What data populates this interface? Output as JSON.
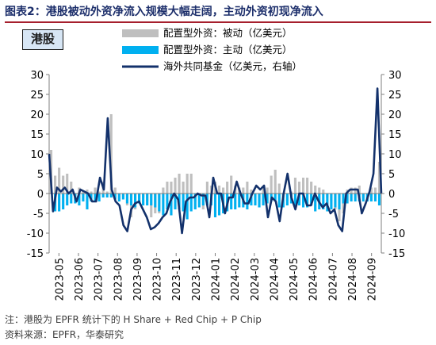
{
  "figure": {
    "title": "图表2：港股被动外资净流入规模大幅走阔，主动外资初现净流入",
    "panel_tag": "港股",
    "note": "注：港股为 EPFR 统计下的 H Share + Red Chip + P Chip",
    "source": "资料来源：EPFR，华泰研究"
  },
  "chart_data": {
    "type": "bar",
    "legend_position": "top",
    "grid": false,
    "y_left_ticks": [
      "30",
      "25",
      "20",
      "15",
      "10",
      "5",
      "0",
      "-5",
      "-10",
      "-15"
    ],
    "y_right_ticks": [
      "30",
      "25",
      "20",
      "15",
      "10",
      "5",
      "0",
      "-5",
      "-10",
      "-15"
    ],
    "ylim": [
      -15,
      30
    ],
    "y2lim": [
      -15,
      30
    ],
    "x_tick_labels": [
      "2023-05",
      "2023-06",
      "2023-07",
      "2023-08",
      "2023-09",
      "2023-10",
      "2023-11",
      "2023-12",
      "2024-01",
      "2024-02",
      "2024-03",
      "2024-04",
      "2024-05",
      "2024-06",
      "2024-07",
      "2024-08",
      "2024-09"
    ],
    "series": [
      {
        "name": "配置型外资：被动（亿美元）",
        "kind": "bar",
        "color": "#bfbfbf",
        "values": [
          11,
          4.5,
          6.5,
          4.5,
          5,
          3,
          -1.5,
          1.5,
          0.5,
          1,
          0.5,
          1.5,
          0.5,
          3,
          0.5,
          20,
          1.5,
          -1.5,
          -1,
          -3,
          -6,
          -4,
          -2.5,
          -1,
          -2,
          -6,
          -5,
          -5,
          1.5,
          3,
          3,
          4,
          5,
          3,
          5,
          5,
          -2,
          -1,
          -4,
          3,
          2,
          3,
          2,
          1.5,
          3,
          4.5,
          2,
          1.5,
          1.5,
          3,
          1,
          -1,
          -2,
          1.5,
          1.5,
          4.5,
          6,
          2.5,
          -1,
          -2,
          0.5,
          4,
          3,
          4,
          4,
          3,
          2,
          1.5,
          1,
          -1,
          -2,
          -4,
          -7,
          -5,
          1,
          1.5,
          1.5,
          2,
          -1,
          -2,
          1.5,
          1.5,
          8
        ]
      },
      {
        "name": "配置型外资：主动（亿美元）",
        "kind": "bar",
        "color": "#00b0f0",
        "values": [
          0,
          -4.5,
          -4.5,
          -4,
          -3,
          -2.5,
          -2.5,
          -3,
          -2,
          -4,
          -2,
          -2,
          -2,
          -1,
          -1,
          -1,
          -1.5,
          -2,
          -1.5,
          -2.5,
          -3,
          -3.5,
          -2.5,
          -3,
          -3,
          -3,
          -3.5,
          -4.5,
          -5.5,
          -4,
          -5.5,
          -4,
          -4,
          -4.5,
          -6.5,
          -4.5,
          -4,
          -3.5,
          -3,
          -3,
          -3,
          -6,
          -5.5,
          -5,
          -4.5,
          -4,
          -4,
          -3.5,
          -3.5,
          -4,
          -3,
          -3,
          -3.5,
          -3,
          -2.5,
          -2,
          -2,
          -3.5,
          -3.5,
          -3,
          -2.5,
          -3,
          -3,
          -3.5,
          -3.5,
          -3,
          -4.5,
          -4,
          -4,
          -4.5,
          -4,
          -3.5,
          -4,
          -2.5,
          -2.5,
          -2,
          -2,
          -2,
          -2,
          -2,
          -2,
          -2,
          -3
        ]
      },
      {
        "name": "海外共同基金（亿美元，右轴）",
        "kind": "line",
        "axis": "right",
        "color": "#13316b",
        "values": [
          10,
          -4.5,
          1.5,
          0.5,
          1.5,
          0,
          1,
          -2,
          1,
          0.5,
          0,
          -2,
          -2,
          4,
          1,
          19,
          1,
          -2,
          -3,
          -8,
          -9.5,
          -4,
          -2.5,
          -2,
          -4,
          -6,
          -9,
          -8.5,
          -7.5,
          -6,
          -5,
          -2,
          0,
          -1.5,
          -10,
          -2,
          -1,
          -1,
          0,
          -0.5,
          -0.5,
          -6,
          4,
          0,
          0,
          -5,
          -1,
          -1,
          3,
          0,
          -2.5,
          -2.5,
          0,
          2,
          1,
          2,
          -6,
          -1,
          -2,
          -7,
          0,
          5,
          -1,
          -4,
          0,
          0,
          -3,
          -3,
          0,
          -2,
          -3.5,
          -2.5,
          -5,
          -4,
          -8,
          -9.5,
          0,
          1,
          1,
          1,
          -5,
          -2.5,
          0.5,
          5,
          26.5,
          0
        ]
      }
    ]
  }
}
